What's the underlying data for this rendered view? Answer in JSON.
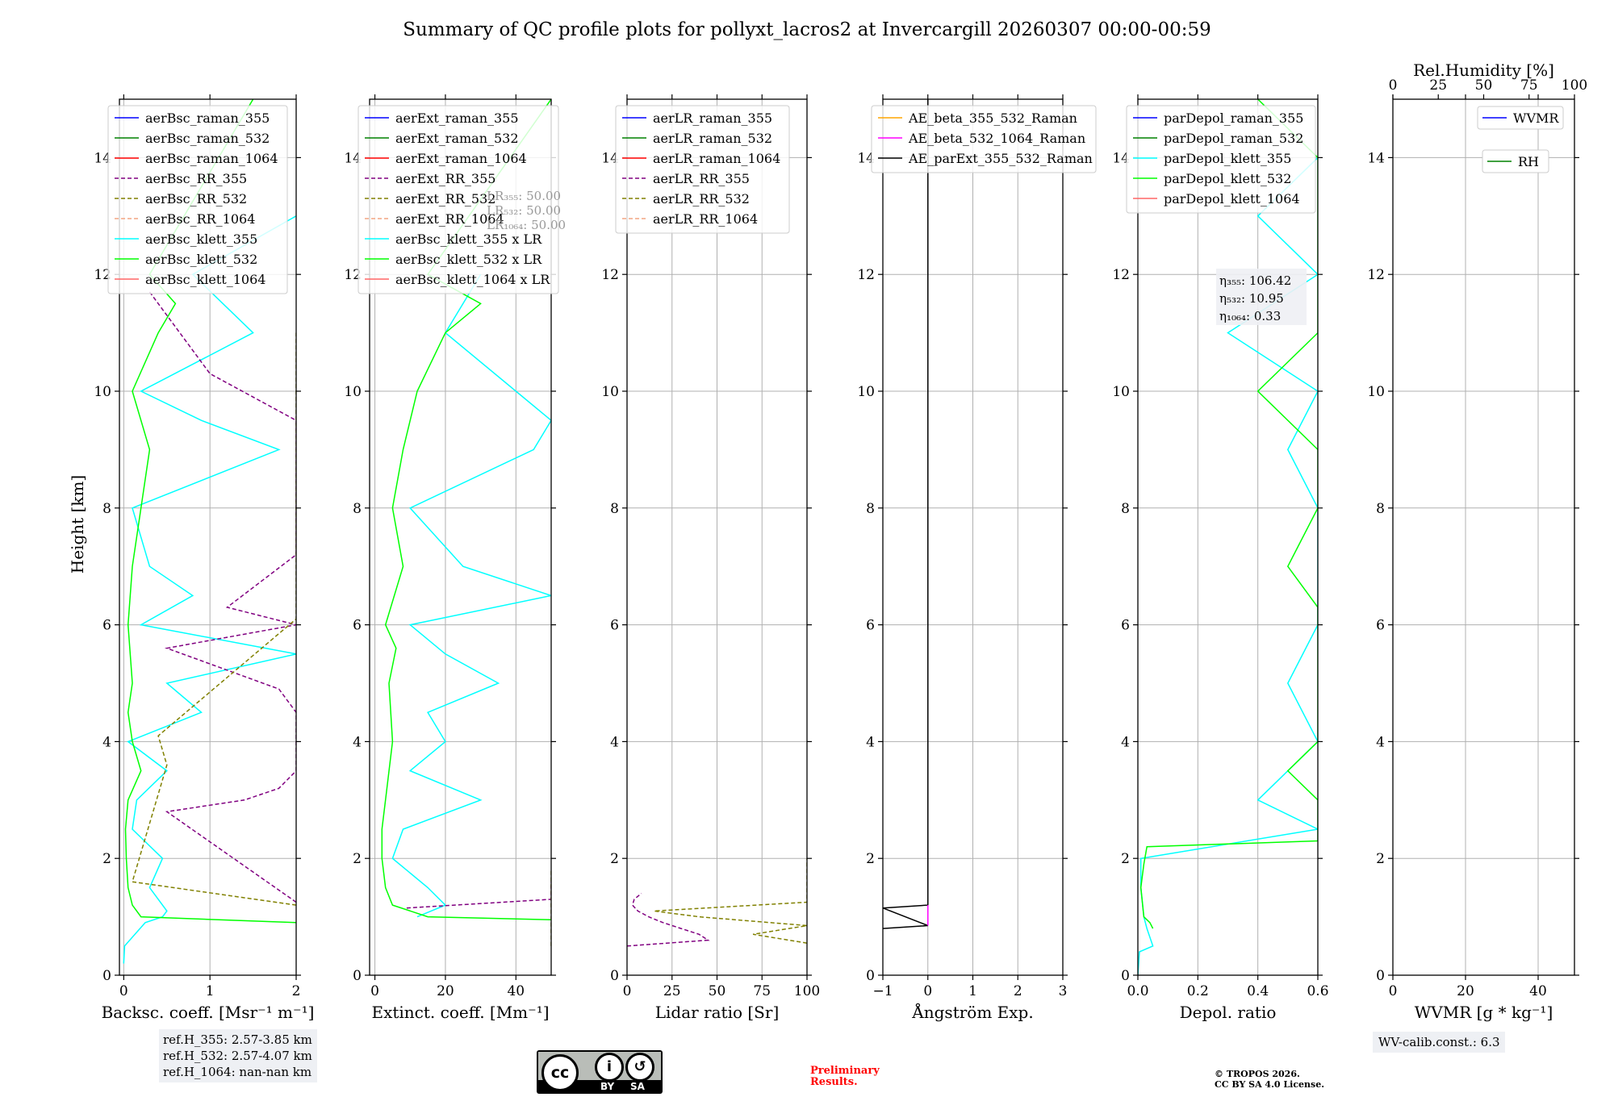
{
  "chart_data": {
    "type": "line",
    "title": "Summary of QC profile plots for pollyxt_lacros2 at Invercargill 20260307 00:00-00:59",
    "ylabel": "Height [km]",
    "ylim": [
      0,
      15
    ],
    "yticks": [
      0,
      2,
      4,
      6,
      8,
      10,
      12,
      14
    ],
    "grid": true,
    "panels": [
      {
        "id": "bsc",
        "xlabel": "Backsc. coeff. [Msr⁻¹ m⁻¹]",
        "xlim": [
          -0.05,
          2
        ],
        "xticks": [
          0,
          1,
          2
        ],
        "xticklabels": [
          "0",
          "1",
          "2"
        ],
        "legend_position": "upper-left",
        "legend": [
          {
            "label": "aerBsc_raman_355",
            "color": "#0000ff",
            "dash": false
          },
          {
            "label": "aerBsc_raman_532",
            "color": "#008000",
            "dash": false
          },
          {
            "label": "aerBsc_raman_1064",
            "color": "#ff0000",
            "dash": false
          },
          {
            "label": "aerBsc_RR_355",
            "color": "#800080",
            "dash": true
          },
          {
            "label": "aerBsc_RR_532",
            "color": "#808000",
            "dash": true
          },
          {
            "label": "aerBsc_RR_1064",
            "color": "#f4a582",
            "dash": true
          },
          {
            "label": "aerBsc_klett_355",
            "color": "#00ffff",
            "dash": false
          },
          {
            "label": "aerBsc_klett_532",
            "color": "#00ff00",
            "dash": false
          },
          {
            "label": "aerBsc_klett_1064",
            "color": "#ff6666",
            "dash": false
          }
        ],
        "series": [
          {
            "name": "aerBsc_klett_355",
            "color": "#00ffff",
            "y": [
              0.2,
              0.5,
              0.9,
              1.0,
              1.1,
              1.5,
              2.0,
              2.5,
              3.0,
              3.5,
              4.0,
              4.5,
              5.0,
              5.5,
              6.0,
              6.5,
              7.0,
              8.0,
              9.0,
              9.5,
              10.0,
              11.0,
              12.0,
              13.0
            ],
            "x": [
              0.0,
              0.01,
              0.25,
              0.45,
              0.5,
              0.3,
              0.45,
              0.1,
              0.15,
              0.5,
              0.05,
              0.9,
              0.5,
              2.0,
              0.2,
              0.8,
              0.3,
              0.1,
              1.8,
              0.9,
              0.2,
              1.5,
              0.8,
              2.0
            ]
          },
          {
            "name": "aerBsc_klett_532",
            "color": "#00ff00",
            "y": [
              0.9,
              1.0,
              1.2,
              1.5,
              2.0,
              2.5,
              3.0,
              3.5,
              4.0,
              4.5,
              5.0,
              6.0,
              7.0,
              8.0,
              9.0,
              10.0,
              11.0,
              11.5,
              12.0,
              15.0
            ],
            "x": [
              2.0,
              0.2,
              0.1,
              0.05,
              0.03,
              0.02,
              0.05,
              0.2,
              0.1,
              0.05,
              0.1,
              0.05,
              0.1,
              0.2,
              0.3,
              0.1,
              0.4,
              0.6,
              0.3,
              1.5
            ]
          },
          {
            "name": "aerBsc_RR_355",
            "color": "#800080",
            "dash": true,
            "y": [
              1.25,
              2.8,
              3.0,
              3.2,
              3.5,
              4.5,
              4.9,
              5.6,
              6.0,
              6.3,
              7.2,
              8.0,
              8.4,
              9.5,
              10.3,
              11.7
            ],
            "x": [
              2.0,
              0.5,
              1.4,
              1.8,
              2.0,
              2.0,
              1.8,
              0.5,
              2.0,
              1.2,
              2.0,
              2.0,
              2.0,
              2.0,
              1.0,
              0.3
            ]
          },
          {
            "name": "aerBsc_RR_532",
            "color": "#808000",
            "dash": true,
            "y": [
              1.2,
              1.6,
              3.6,
              4.1,
              6.1,
              7.4,
              7.6,
              8.5,
              9.4,
              10.1,
              10.4,
              11.0
            ],
            "x": [
              2.0,
              0.1,
              0.5,
              0.4,
              2.0,
              2.0,
              2.0,
              2.0,
              2.0,
              2.0,
              2.0,
              2.0
            ]
          }
        ]
      },
      {
        "id": "ext",
        "xlabel": "Extinct. coeff. [Mm⁻¹]",
        "xlim": [
          -1.5,
          50
        ],
        "xticks": [
          0,
          20,
          40
        ],
        "xticklabels": [
          "0",
          "20",
          "40"
        ],
        "legend_position": "upper-left",
        "legend": [
          {
            "label": "aerExt_raman_355",
            "color": "#0000ff",
            "dash": false
          },
          {
            "label": "aerExt_raman_532",
            "color": "#008000",
            "dash": false
          },
          {
            "label": "aerExt_raman_1064",
            "color": "#ff0000",
            "dash": false
          },
          {
            "label": "aerExt_RR_355",
            "color": "#800080",
            "dash": true
          },
          {
            "label": "aerExt_RR_532",
            "color": "#808000",
            "dash": true
          },
          {
            "label": "aerExt_RR_1064",
            "color": "#f4a582",
            "dash": true
          },
          {
            "label": "aerBsc_klett_355 x LR",
            "color": "#00ffff",
            "dash": false
          },
          {
            "label": "aerBsc_klett_532 x LR",
            "color": "#00ff00",
            "dash": false
          },
          {
            "label": "aerBsc_klett_1064 x LR",
            "color": "#ff6666",
            "dash": false
          }
        ],
        "annotations": [
          "LR₃₅₅: 50.00",
          "LR₅₃₂: 50.00",
          "LR₁₀₆₄: 50.00"
        ],
        "series": [
          {
            "name": "aerBsc_klett_355 x LR",
            "color": "#00ffff",
            "y": [
              1.0,
              1.2,
              1.5,
              2.0,
              2.5,
              3.0,
              3.5,
              4.0,
              4.5,
              5.0,
              5.5,
              6.0,
              6.5,
              7.0,
              8.0,
              9.0,
              9.5,
              10.0,
              11.0,
              12.0
            ],
            "x": [
              12,
              20,
              15,
              5,
              8,
              30,
              10,
              20,
              15,
              35,
              20,
              10,
              50,
              25,
              10,
              45,
              50,
              40,
              20,
              30
            ]
          },
          {
            "name": "aerBsc_klett_532 x LR",
            "color": "#00ff00",
            "y": [
              0.95,
              1.0,
              1.2,
              1.5,
              2.0,
              2.5,
              3.0,
              4.0,
              5.0,
              5.6,
              6.0,
              7.0,
              8.0,
              9.0,
              10.0,
              11.0,
              11.5,
              12.0,
              15.0
            ],
            "x": [
              50,
              15,
              5,
              3,
              2,
              2,
              3,
              5,
              4,
              6,
              3,
              8,
              5,
              8,
              12,
              20,
              30,
              15,
              50
            ]
          },
          {
            "name": "aerExt_RR_355",
            "color": "#800080",
            "dash": true,
            "y": [
              1.15,
              1.3,
              1.6
            ],
            "x": [
              9,
              50,
              50
            ]
          },
          {
            "name": "aerExt_RR_532",
            "color": "#808000",
            "dash": true,
            "y": [
              0.5,
              1.5,
              1.6,
              1.7,
              1.8
            ],
            "x": [
              50,
              50,
              50,
              50,
              50
            ]
          }
        ]
      },
      {
        "id": "lr",
        "xlabel": "Lidar ratio [Sr]",
        "xlim": [
          0,
          100
        ],
        "xticks": [
          0,
          25,
          50,
          75,
          100
        ],
        "xticklabels": [
          "0",
          "25",
          "50",
          "75",
          "100"
        ],
        "legend_position": "upper-left",
        "legend": [
          {
            "label": "aerLR_raman_355",
            "color": "#0000ff",
            "dash": false
          },
          {
            "label": "aerLR_raman_532",
            "color": "#008000",
            "dash": false
          },
          {
            "label": "aerLR_raman_1064",
            "color": "#ff0000",
            "dash": false
          },
          {
            "label": "aerLR_RR_355",
            "color": "#800080",
            "dash": true
          },
          {
            "label": "aerLR_RR_532",
            "color": "#808000",
            "dash": true
          },
          {
            "label": "aerLR_RR_1064",
            "color": "#f4a582",
            "dash": true
          }
        ],
        "series": [
          {
            "name": "aerLR_RR_355",
            "color": "#800080",
            "dash": true,
            "y": [
              0.5,
              0.6,
              0.7,
              0.8,
              0.9,
              1.0,
              1.1,
              1.2,
              1.3,
              1.4
            ],
            "x": [
              0,
              45,
              40,
              30,
              20,
              12,
              6,
              3,
              4,
              8
            ]
          },
          {
            "name": "aerLR_RR_532",
            "color": "#808000",
            "dash": true,
            "y": [
              0.55,
              0.7,
              0.85,
              1.0,
              1.1,
              1.25,
              1.45,
              1.6,
              1.7,
              2.0
            ],
            "x": [
              100,
              70,
              100,
              40,
              15,
              100,
              100,
              100,
              100,
              100
            ]
          }
        ]
      },
      {
        "id": "ae",
        "xlabel": "Ångström Exp.",
        "xlim": [
          -1,
          3
        ],
        "xticks": [
          -1,
          0,
          1,
          2,
          3
        ],
        "xticklabels": [
          "−1",
          "0",
          "1",
          "2",
          "3"
        ],
        "legend_position": "upper-left",
        "legend": [
          {
            "label": "AE_beta_355_532_Raman",
            "color": "#ffa500",
            "dash": false
          },
          {
            "label": "AE_beta_532_1064_Raman",
            "color": "#ff00ff",
            "dash": false
          },
          {
            "label": "AE_parExt_355_532_Raman",
            "color": "#000000",
            "dash": false
          }
        ],
        "series": [
          {
            "name": "AE_parExt_355_532_Raman",
            "color": "#000000",
            "y": [
              0.8,
              0.85,
              1.15,
              1.2,
              15.0
            ],
            "x": [
              -1.0,
              0.0,
              -1.0,
              0.0,
              0.0
            ]
          },
          {
            "name": "AE_beta_532_1064_Raman",
            "color": "#ff00ff",
            "y": [
              0.85,
              1.2
            ],
            "x": [
              0.0,
              0.0
            ]
          }
        ]
      },
      {
        "id": "depol",
        "xlabel": "Depol. ratio",
        "xlim": [
          0,
          0.6
        ],
        "xticks": [
          0,
          0.2,
          0.4,
          0.6
        ],
        "xticklabels": [
          "0.0",
          "0.2",
          "0.4",
          "0.6"
        ],
        "legend_position": "upper-left",
        "legend": [
          {
            "label": "parDepol_raman_355",
            "color": "#0000ff",
            "dash": false
          },
          {
            "label": "parDepol_raman_532",
            "color": "#008000",
            "dash": false
          },
          {
            "label": "parDepol_klett_355",
            "color": "#00ffff",
            "dash": false
          },
          {
            "label": "parDepol_klett_532",
            "color": "#00ff00",
            "dash": false
          },
          {
            "label": "parDepol_klett_1064",
            "color": "#ff6666",
            "dash": false
          }
        ],
        "annotations": [
          "η₃₅₅: 106.42",
          "η₅₃₂: 10.95",
          "η₁₀₆₄: 0.33"
        ],
        "series": [
          {
            "name": "parDepol_klett_355",
            "color": "#00ffff",
            "y": [
              0.0,
              0.4,
              0.5,
              0.8,
              1.0,
              1.5,
              2.0,
              2.5,
              3.0,
              4.0,
              5.0,
              6.0,
              7.0,
              8.0,
              9.0,
              10.0,
              11.0,
              12.0,
              13.0,
              14.0
            ],
            "x": [
              0.0,
              0.005,
              0.05,
              0.03,
              0.02,
              0.01,
              0.01,
              0.6,
              0.4,
              0.6,
              0.5,
              0.6,
              0.6,
              0.6,
              0.5,
              0.6,
              0.3,
              0.6,
              0.4,
              0.6
            ]
          },
          {
            "name": "parDepol_klett_532",
            "color": "#00ff00",
            "y": [
              0.8,
              0.9,
              1.0,
              1.5,
              1.9,
              2.2,
              2.3,
              3.0,
              3.5,
              4.0,
              5.0,
              6.0,
              6.3,
              7.0,
              8.0,
              9.0,
              10.0,
              11.0,
              12.0,
              12.5,
              14.0,
              15.0
            ],
            "x": [
              0.05,
              0.04,
              0.02,
              0.01,
              0.02,
              0.03,
              0.6,
              0.6,
              0.5,
              0.6,
              0.6,
              0.6,
              0.6,
              0.5,
              0.6,
              0.6,
              0.4,
              0.6,
              0.6,
              0.6,
              0.6,
              0.4
            ]
          }
        ]
      },
      {
        "id": "wv",
        "xlabel": "WVMR [g * kg⁻¹]",
        "xlim": [
          0,
          50
        ],
        "xticks": [
          0,
          20,
          40
        ],
        "xticklabels": [
          "0",
          "20",
          "40"
        ],
        "top_xlabel": "Rel.Humidity [%]",
        "top_xlim": [
          0,
          100
        ],
        "top_xticks": [
          0,
          25,
          50,
          75,
          100
        ],
        "top_xticklabels": [
          "0",
          "25",
          "50",
          "75",
          "100"
        ],
        "legend": [
          {
            "label": "WVMR",
            "color": "#0000ff",
            "dash": false
          },
          {
            "label": "RH",
            "color": "#008000",
            "dash": false
          }
        ],
        "series": []
      }
    ]
  },
  "info": {
    "ref_heights": [
      "ref.H_355: 2.57-3.85 km",
      "ref.H_532: 2.57-4.07 km",
      "ref.H_1064: nan-nan km"
    ],
    "preliminary": [
      "Preliminary",
      "Results."
    ],
    "copyright": [
      "© TROPOS 2026.",
      "CC BY SA 4.0 License."
    ],
    "wv_calib": "WV-calib.const.: 6.3"
  },
  "license_badge": {
    "cc": "cc",
    "by": "BY",
    "sa": "SA"
  }
}
